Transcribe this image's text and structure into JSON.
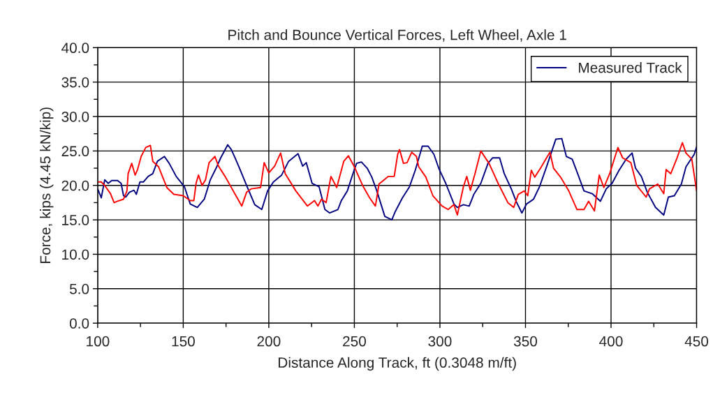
{
  "chart_data": {
    "type": "line",
    "title": "Pitch and Bounce Vertical Forces, Left Wheel, Axle 1",
    "xlabel": "Distance Along Track, ft (0.3048 m/ft)",
    "ylabel": "Force, kips (4.45 kN/kip)",
    "xlim": [
      100,
      450
    ],
    "ylim": [
      0,
      40
    ],
    "xticks": [
      100,
      {
        "value": 125,
        "label": null
      },
      150,
      {
        "value": 175,
        "label": null
      },
      200,
      {
        "value": 225,
        "label": null
      },
      250,
      {
        "value": 275,
        "label": null
      },
      300,
      {
        "value": 325,
        "label": null
      },
      350,
      {
        "value": 375,
        "label": null
      },
      400,
      {
        "value": 425,
        "label": null
      },
      450
    ],
    "yticks": [
      {
        "value": 0,
        "label": "0.0"
      },
      {
        "value": 2.5,
        "label": null
      },
      {
        "value": 5,
        "label": "5.0"
      },
      {
        "value": 7.5,
        "label": null
      },
      {
        "value": 10,
        "label": "10.0"
      },
      {
        "value": 12.5,
        "label": null
      },
      {
        "value": 15,
        "label": "15.0"
      },
      {
        "value": 17.5,
        "label": null
      },
      {
        "value": 20,
        "label": "20.0"
      },
      {
        "value": 22.5,
        "label": null
      },
      {
        "value": 25,
        "label": "25.0"
      },
      {
        "value": 27.5,
        "label": null
      },
      {
        "value": 30,
        "label": "30.0"
      },
      {
        "value": 32.5,
        "label": null
      },
      {
        "value": 35,
        "label": "35.0"
      },
      {
        "value": 37.5,
        "label": null
      },
      {
        "value": 40,
        "label": "40.0"
      }
    ],
    "grid": true,
    "legend": "top right",
    "marker": "none",
    "line_style": "solid",
    "series": [
      {
        "name": "Measured Track",
        "color": "#000080",
        "x": [
          100,
          102.1,
          104.1,
          106.2,
          108.2,
          111.6,
          113.7,
          115.1,
          116.4,
          118.5,
          121.2,
          122.6,
          124.7,
          126.7,
          129.5,
          132.2,
          134.9,
          139.0,
          141.8,
          145.9,
          150.7,
          154.1,
          158.2,
          162.3,
          165.8,
          169.2,
          171.9,
          176.0,
          178.1,
          180.8,
          182.9,
          187.0,
          191.8,
          195.9,
          199.3,
          202.7,
          207.5,
          211.6,
          217.1,
          219.8,
          221.9,
          225.3,
          229.4,
          232.8,
          235.6,
          240.4,
          242.4,
          245.9,
          249.3,
          251.3,
          254.1,
          257.5,
          260.2,
          263.0,
          267.8,
          271.9,
          273.9,
          278.1,
          282.2,
          285.6,
          289.7,
          293.1,
          296.5,
          299.3,
          303.4,
          308.2,
          310.2,
          313.7,
          317.1,
          319.8,
          323.9,
          328.1,
          330.8,
          334.9,
          337.6,
          341.7,
          344.5,
          347.9,
          350.6,
          354.7,
          358.2,
          362.3,
          365.0,
          367.7,
          371.2,
          373.9,
          377.3,
          380.8,
          384.2,
          389.0,
          393.8,
          397.2,
          400.6,
          404.7,
          408.8,
          412.3,
          414.3,
          417.7,
          421.2,
          426.0,
          430.8,
          433.5,
          437.0,
          441.1,
          443.8,
          448.6,
          450
        ],
        "values": [
          19.5,
          18.2,
          20.8,
          20.3,
          20.7,
          20.7,
          20.3,
          18.5,
          18.3,
          19.0,
          19.3,
          18.7,
          20.5,
          20.5,
          21.3,
          21.7,
          23.5,
          24.2,
          23.2,
          21.3,
          19.8,
          17.3,
          16.8,
          18.0,
          20.8,
          22.5,
          24.0,
          25.9,
          25.2,
          23.7,
          22.5,
          20.0,
          17.2,
          16.5,
          19.2,
          20.5,
          21.5,
          23.5,
          24.6,
          22.8,
          23.3,
          20.3,
          19.8,
          16.5,
          16.0,
          16.5,
          17.8,
          19.2,
          21.8,
          23.2,
          23.4,
          22.5,
          21.2,
          19.3,
          15.5,
          15.0,
          16.2,
          18.2,
          19.8,
          22.2,
          25.7,
          25.7,
          24.5,
          22.5,
          20.3,
          17.3,
          16.8,
          17.2,
          17.0,
          18.7,
          20.3,
          23.2,
          24.0,
          24.0,
          21.7,
          19.5,
          17.7,
          16.0,
          17.3,
          18.0,
          19.8,
          22.7,
          24.7,
          26.7,
          26.8,
          24.2,
          23.8,
          21.5,
          19.2,
          18.8,
          17.7,
          19.5,
          20.3,
          22.2,
          23.8,
          24.7,
          22.5,
          21.3,
          19.0,
          16.8,
          15.7,
          18.3,
          18.5,
          20.2,
          22.7,
          24.5,
          25.6
        ]
      },
      {
        "color": "#ff0000",
        "x": [
          100,
          102.1,
          104.1,
          107.5,
          109.6,
          111.6,
          115.1,
          117.1,
          117.8,
          119.9,
          121.9,
          123.3,
          125.4,
          128.1,
          130.8,
          132.2,
          135.6,
          140.4,
          144.5,
          150.0,
          154.1,
          156.2,
          157.5,
          158.9,
          161.0,
          163.0,
          165.1,
          168.5,
          170.6,
          174.7,
          180.1,
          184.2,
          187.0,
          189.7,
          195.2,
          197.3,
          200.0,
          203.4,
          206.9,
          209.6,
          215.8,
          222.6,
          226.7,
          228.7,
          230.8,
          233.5,
          236.3,
          239.7,
          243.8,
          246.5,
          250.0,
          254.8,
          258.9,
          262.3,
          264.4,
          269.8,
          273.3,
          275.3,
          276.4,
          278.7,
          280.8,
          283.5,
          286.3,
          287.6,
          291.8,
          295.9,
          301.3,
          304.8,
          308.2,
          310.2,
          313.7,
          315.7,
          317.8,
          320.5,
          323.9,
          328.7,
          334.2,
          339.7,
          343.1,
          345.8,
          349.3,
          351.3,
          353.4,
          355.4,
          358.8,
          362.3,
          364.3,
          366.4,
          370.5,
          375.3,
          380.1,
          384.2,
          386.9,
          390.3,
          393.1,
          395.8,
          399.2,
          404.0,
          406.8,
          411.6,
          415.0,
          420.5,
          422.5,
          427.3,
          430.8,
          432.2,
          434.9,
          438.3,
          441.7,
          443.8,
          447.2,
          450
        ],
        "values": [
          20.5,
          20.5,
          20.0,
          18.8,
          17.5,
          17.7,
          18.0,
          19.2,
          21.7,
          23.2,
          21.5,
          22.3,
          24.2,
          25.5,
          25.8,
          23.5,
          22.7,
          19.7,
          18.7,
          18.5,
          17.8,
          17.8,
          20.3,
          21.5,
          20.0,
          20.8,
          23.3,
          24.2,
          22.8,
          21.2,
          18.8,
          17.0,
          19.0,
          19.5,
          19.7,
          23.3,
          21.8,
          22.8,
          24.7,
          21.7,
          19.2,
          17.0,
          17.8,
          17.0,
          18.0,
          17.5,
          21.3,
          19.7,
          23.5,
          24.3,
          22.7,
          20.0,
          18.2,
          17.0,
          20.2,
          21.3,
          21.3,
          24.5,
          25.2,
          23.2,
          23.3,
          24.8,
          24.2,
          22.7,
          21.2,
          18.5,
          17.0,
          16.5,
          17.2,
          15.7,
          19.8,
          21.3,
          19.3,
          21.7,
          25.0,
          23.2,
          20.2,
          17.5,
          16.8,
          18.7,
          19.2,
          18.5,
          22.2,
          21.2,
          22.5,
          24.0,
          24.8,
          22.5,
          21.2,
          19.2,
          16.5,
          16.5,
          17.7,
          16.3,
          21.5,
          19.7,
          21.7,
          25.5,
          24.0,
          23.3,
          20.0,
          18.3,
          19.5,
          20.2,
          18.8,
          22.3,
          21.7,
          23.8,
          26.2,
          24.7,
          23.8,
          19.2
        ]
      }
    ]
  }
}
